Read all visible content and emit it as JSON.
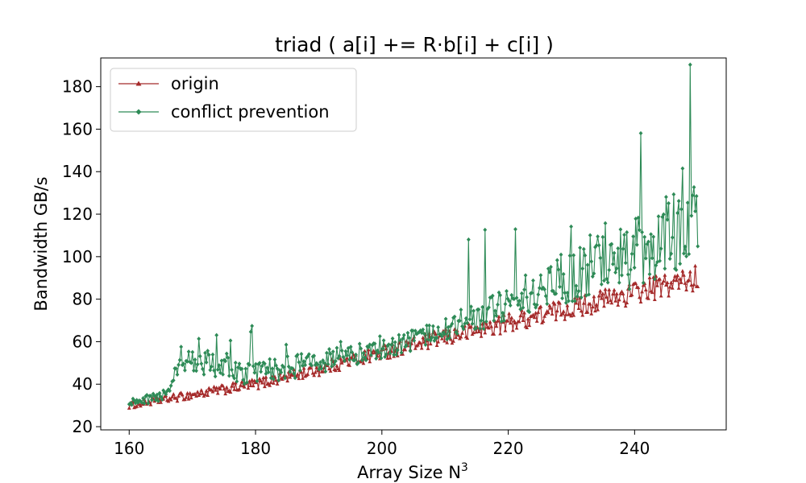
{
  "chart_data": {
    "type": "line",
    "title": "triad ( a[i] += R·b[i] + c[i] )",
    "xlabel_text": "Array Size N",
    "xlabel_sup": "3",
    "ylabel": "Bandwidth GB/s",
    "xlim": [
      155.5,
      254.5
    ],
    "ylim": [
      18.5,
      193.5
    ],
    "x_ticks": [
      160,
      180,
      200,
      220,
      240
    ],
    "y_ticks": [
      20,
      40,
      60,
      80,
      100,
      120,
      140,
      160,
      180
    ],
    "grid": false,
    "legend_position": "top-left",
    "x_range": [
      160,
      250
    ],
    "series": [
      {
        "name": "origin",
        "color": "#a52a2a",
        "marker": "triangle",
        "trend": [
          [
            160,
            30
          ],
          [
            170,
            35
          ],
          [
            180,
            40
          ],
          [
            190,
            47
          ],
          [
            200,
            55
          ],
          [
            210,
            62
          ],
          [
            220,
            69
          ],
          [
            230,
            76
          ],
          [
            240,
            83
          ],
          [
            250,
            90
          ]
        ],
        "noise": [
          [
            160,
            1.5
          ],
          [
            170,
            2.0
          ],
          [
            180,
            2.5
          ],
          [
            190,
            3.0
          ],
          [
            200,
            3.5
          ],
          [
            210,
            4.0
          ],
          [
            220,
            4.5
          ],
          [
            230,
            5.0
          ],
          [
            240,
            5.5
          ],
          [
            250,
            6.0
          ]
        ]
      },
      {
        "name": "conflict prevention",
        "color": "#2e8b57",
        "marker": "diamond",
        "trend": [
          [
            160,
            31
          ],
          [
            166,
            35
          ],
          [
            168,
            52
          ],
          [
            172,
            50
          ],
          [
            178,
            46
          ],
          [
            182,
            47
          ],
          [
            190,
            50
          ],
          [
            196,
            54
          ],
          [
            200,
            57
          ],
          [
            206,
            62
          ],
          [
            210,
            66
          ],
          [
            216,
            72
          ],
          [
            220,
            78
          ],
          [
            224,
            84
          ],
          [
            228,
            90
          ],
          [
            232,
            95
          ],
          [
            236,
            98
          ],
          [
            240,
            102
          ],
          [
            244,
            108
          ],
          [
            248,
            115
          ],
          [
            250,
            118
          ]
        ],
        "noise": [
          [
            160,
            2.0
          ],
          [
            166,
            2.5
          ],
          [
            168,
            6.0
          ],
          [
            180,
            6.0
          ],
          [
            200,
            5.0
          ],
          [
            210,
            5.5
          ],
          [
            220,
            8.0
          ],
          [
            230,
            14.0
          ],
          [
            240,
            17.0
          ],
          [
            250,
            20.0
          ]
        ]
      }
    ]
  }
}
